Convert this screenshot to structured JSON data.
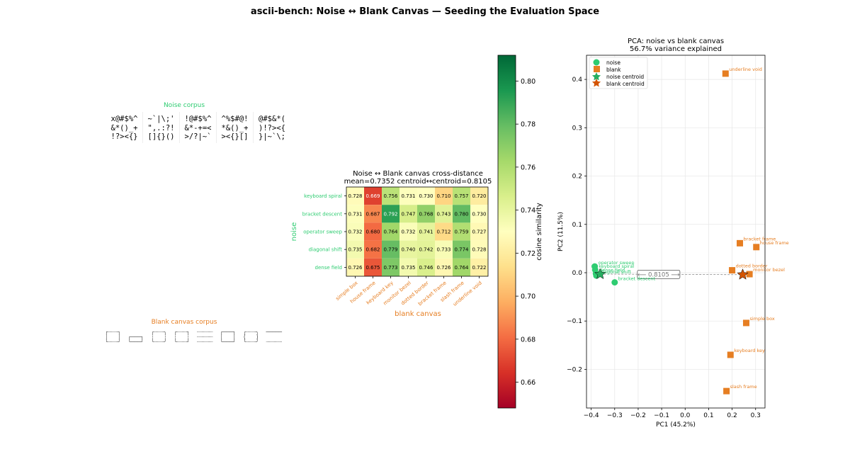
{
  "suptitle": "ascii-bench: Noise ↔ Blank Canvas — Seeding the Evaluation Space",
  "colors": {
    "noise": "#2ecc71",
    "blank": "#e67e22",
    "centroid_noise": "#27ae60",
    "centroid_blank": "#d35400"
  },
  "noise_corpus": {
    "title": "Noise corpus",
    "samples": [
      "x@#$%^\n&*()_+\n!?><{}",
      "~`|\\;'\n\",.:?!\n[]{}()",
      "!@#$%^\n&*-+=<\n>/?|~`",
      "^%$#@!\n*&()_+\n><{}[]",
      "@#$&*(\n)!?><{\n}|~`\\;"
    ]
  },
  "blank_corpus": {
    "title": "Blank canvas corpus",
    "samples": [
      "┌┈┈┈┐\n│   │\n└┈┈┈┘",
      "\n┌───┐\n└───┘",
      "╭┈┈┈╮\n┆   ┆\n╰┈┈┈╯",
      "┌┈┈┈┐\n┆   ┆\n└┈┈┈┘",
      "┈┈┈┈┈\n┈┈┈┈┈\n┈┈┈┈┈",
      "┌───┐\n│   │\n└───┘",
      "╭┈┈┈╮\n(   )\n╰┈┈┈╯",
      "─────\n\n┈┈┈┈┈"
    ]
  },
  "chart_data": [
    {
      "type": "heatmap",
      "title": "Noise ↔ Blank canvas cross-distance",
      "subtitle": "mean=0.7352  centroid↔centroid=0.8105",
      "ylabel": "noise",
      "xlabel": "blank canvas",
      "rows": [
        "keyboard spiral",
        "bracket descent",
        "operator sweep",
        "diagonal shift",
        "dense field"
      ],
      "cols": [
        "simple box",
        "house frame",
        "keyboard key",
        "monitor bezel",
        "dotted border",
        "bracket frame",
        "slash frame",
        "underline void"
      ],
      "values": [
        [
          0.728,
          0.669,
          0.756,
          0.731,
          0.73,
          0.71,
          0.757,
          0.72
        ],
        [
          0.731,
          0.687,
          0.792,
          0.747,
          0.768,
          0.743,
          0.78,
          0.73
        ],
        [
          0.732,
          0.68,
          0.764,
          0.732,
          0.741,
          0.712,
          0.759,
          0.727
        ],
        [
          0.735,
          0.682,
          0.779,
          0.74,
          0.742,
          0.733,
          0.774,
          0.728
        ],
        [
          0.726,
          0.675,
          0.773,
          0.735,
          0.746,
          0.726,
          0.764,
          0.722
        ]
      ],
      "colorbar": {
        "label": "cosine similarity",
        "min": 0.648,
        "max": 0.812,
        "ticks": [
          "0.66",
          "0.68",
          "0.70",
          "0.72",
          "0.74",
          "0.76",
          "0.78",
          "0.80"
        ]
      }
    },
    {
      "type": "scatter",
      "title": "PCA: noise vs blank canvas",
      "subtitle": "56.7% variance explained",
      "xlabel": "PC1 (45.2%)",
      "ylabel": "PC2 (11.5%)",
      "xlim": [
        -0.42,
        0.34
      ],
      "ylim": [
        -0.28,
        0.45
      ],
      "xticks": [
        "−0.4",
        "−0.3",
        "−0.2",
        "−0.1",
        "0.0",
        "0.1",
        "0.2",
        "0.3"
      ],
      "yticks": [
        "−0.2",
        "−0.1",
        "0.0",
        "0.1",
        "0.2",
        "0.3",
        "0.4"
      ],
      "legend": [
        "noise",
        "blank",
        "noise centroid",
        "blank centroid"
      ],
      "centroid_label": "0.8105",
      "noise_points": [
        {
          "label": "operator sweep",
          "x": -0.385,
          "y": 0.013
        },
        {
          "label": "keyboard spiral",
          "x": -0.383,
          "y": 0.006
        },
        {
          "label": "dense field",
          "x": -0.38,
          "y": -0.002
        },
        {
          "label": "diagonal shift",
          "x": -0.378,
          "y": -0.006
        },
        {
          "label": "bracket descent",
          "x": -0.3,
          "y": -0.02
        }
      ],
      "blank_points": [
        {
          "label": "underline void",
          "x": 0.172,
          "y": 0.412
        },
        {
          "label": "bracket frame",
          "x": 0.233,
          "y": 0.061
        },
        {
          "label": "house frame",
          "x": 0.303,
          "y": 0.053
        },
        {
          "label": "dotted border",
          "x": 0.2,
          "y": 0.005
        },
        {
          "label": "monitor bezel",
          "x": 0.274,
          "y": -0.003
        },
        {
          "label": "simple box",
          "x": 0.26,
          "y": -0.104
        },
        {
          "label": "keyboard key",
          "x": 0.193,
          "y": -0.17
        },
        {
          "label": "slash frame",
          "x": 0.176,
          "y": -0.245
        }
      ],
      "noise_centroid": {
        "x": -0.362,
        "y": -0.003
      },
      "blank_centroid": {
        "x": 0.245,
        "y": -0.004
      }
    }
  ]
}
